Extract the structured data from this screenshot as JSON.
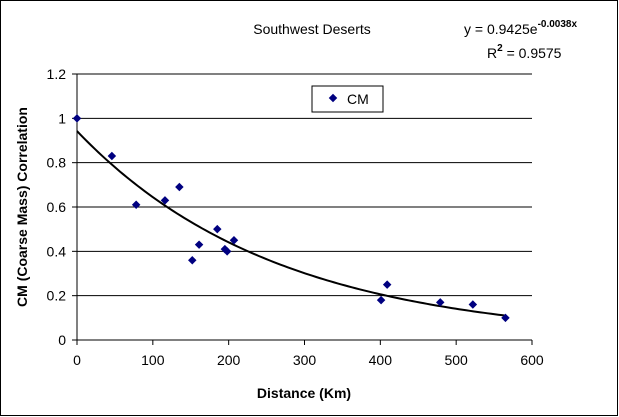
{
  "chart_data": {
    "type": "scatter",
    "title": "Southwest Deserts",
    "xlabel": "Distance (Km)",
    "ylabel": "CM (Coarse Mass) Correlation",
    "xlim": [
      0,
      600
    ],
    "ylim": [
      0,
      1.2
    ],
    "x_ticks": [
      "0",
      "100",
      "200",
      "300",
      "400",
      "500",
      "600"
    ],
    "y_ticks": [
      "0",
      "0.2",
      "0.4",
      "0.6",
      "0.8",
      "1",
      "1.2"
    ],
    "grid": "horizontal",
    "legend_position": "top-center",
    "marker_color": "#000080",
    "series": [
      {
        "name": "CM",
        "points": [
          {
            "x": 0,
            "y": 1.0
          },
          {
            "x": 46,
            "y": 0.83
          },
          {
            "x": 78,
            "y": 0.61
          },
          {
            "x": 116,
            "y": 0.63
          },
          {
            "x": 135,
            "y": 0.69
          },
          {
            "x": 152,
            "y": 0.36
          },
          {
            "x": 161,
            "y": 0.43
          },
          {
            "x": 185,
            "y": 0.5
          },
          {
            "x": 195,
            "y": 0.41
          },
          {
            "x": 198,
            "y": 0.4
          },
          {
            "x": 207,
            "y": 0.45
          },
          {
            "x": 401,
            "y": 0.18
          },
          {
            "x": 409,
            "y": 0.25
          },
          {
            "x": 479,
            "y": 0.17
          },
          {
            "x": 522,
            "y": 0.16
          },
          {
            "x": 565,
            "y": 0.1
          }
        ]
      }
    ],
    "trendline": {
      "type": "exponential",
      "a": 0.9425,
      "b": -0.0038,
      "equation_prefix": "y = 0.9425e",
      "equation_exponent": "-0.0038x",
      "r2_prefix": "R",
      "r2_superscript": "2",
      "r2_suffix": " = 0.9575"
    }
  }
}
